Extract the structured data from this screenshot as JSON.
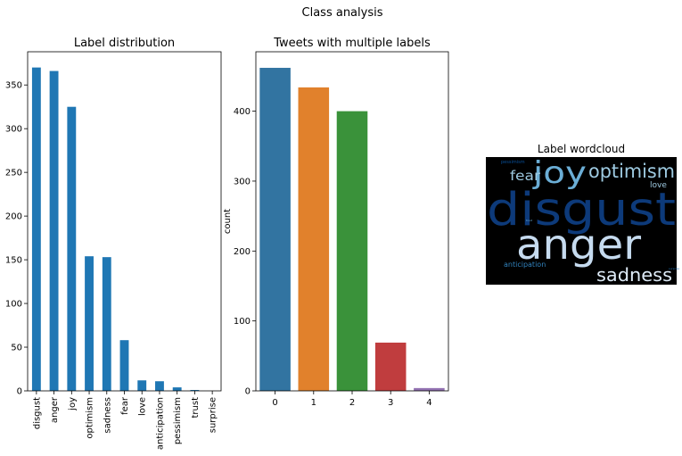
{
  "suptitle": "Class analysis",
  "chart_data": [
    {
      "type": "bar",
      "title": "Label distribution",
      "xlabel": "",
      "ylabel": "",
      "categories": [
        "disgust",
        "anger",
        "joy",
        "optimism",
        "sadness",
        "fear",
        "love",
        "anticipation",
        "pessimism",
        "trust",
        "surprise"
      ],
      "values": [
        370,
        366,
        325,
        154,
        153,
        58,
        12,
        11,
        4,
        1,
        0
      ],
      "ylim": [
        0,
        388
      ],
      "yticks": [
        0,
        50,
        100,
        150,
        200,
        250,
        300,
        350
      ],
      "color": "#1f77b4",
      "grid": false
    },
    {
      "type": "bar",
      "title": "Tweets with multiple labels",
      "xlabel": "",
      "ylabel": "count",
      "categories": [
        "0",
        "1",
        "2",
        "3",
        "4"
      ],
      "values": [
        462,
        434,
        400,
        69,
        4
      ],
      "ylim": [
        0,
        485
      ],
      "yticks": [
        0,
        100,
        200,
        300,
        400
      ],
      "colors": [
        "#3274a1",
        "#e1812c",
        "#3a923a",
        "#c03d3e",
        "#9372b2"
      ],
      "grid": false
    }
  ],
  "wordcloud": {
    "title": "Label wordcloud",
    "background": "#000000",
    "words": [
      {
        "text": "disgust",
        "color": "#0d3a7a"
      },
      {
        "text": "anger",
        "color": "#c6dbef"
      },
      {
        "text": "joy",
        "color": "#6baed6"
      },
      {
        "text": "optimism",
        "color": "#9ecae1"
      },
      {
        "text": "sadness",
        "color": "#deebf7"
      },
      {
        "text": "fear",
        "color": "#9ecae1"
      },
      {
        "text": "love",
        "color": "#9ecae1"
      },
      {
        "text": "anticipation",
        "color": "#3182bd"
      },
      {
        "text": "pessimism",
        "color": "#08519c"
      },
      {
        "text": "trust",
        "color": "#6baed6"
      },
      {
        "text": "surprise",
        "color": "#2171b5"
      }
    ]
  }
}
